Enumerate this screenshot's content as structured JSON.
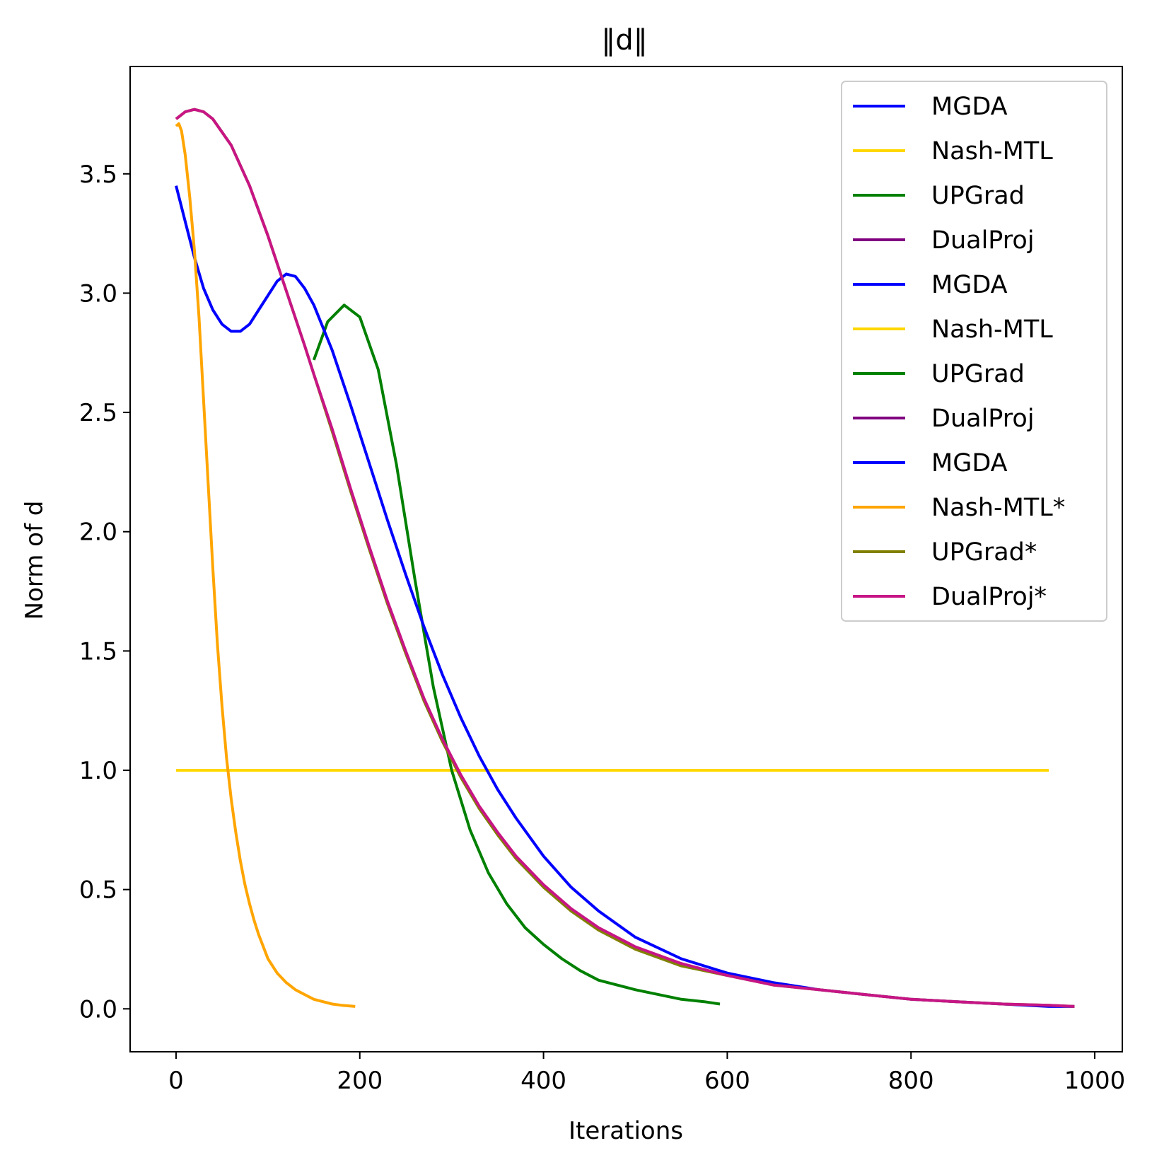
{
  "chart_data": {
    "type": "line",
    "title": "‖d‖",
    "xlabel": "Iterations",
    "ylabel": "Norm of d",
    "xlim": [
      -50,
      1030
    ],
    "ylim": [
      -0.18,
      3.95
    ],
    "xticks": [
      0,
      200,
      400,
      600,
      800,
      1000
    ],
    "yticks": [
      0.0,
      0.5,
      1.0,
      1.5,
      2.0,
      2.5,
      3.0,
      3.5
    ],
    "xtick_labels": [
      "0",
      "200",
      "400",
      "600",
      "800",
      "1000"
    ],
    "ytick_labels": [
      "0.0",
      "0.5",
      "1.0",
      "1.5",
      "2.0",
      "2.5",
      "3.0",
      "3.5"
    ],
    "grid": false,
    "legend_position": "upper right",
    "series": [
      {
        "name": "MGDA",
        "color": "#0000ff",
        "x": [],
        "y": []
      },
      {
        "name": "Nash-MTL",
        "color": "#ffd700",
        "x": [
          0,
          950
        ],
        "y": [
          1.0,
          1.0
        ]
      },
      {
        "name": "UPGrad",
        "color": "#008000",
        "x": [
          150,
          165,
          183,
          200,
          220,
          240,
          260,
          280,
          300,
          320,
          340,
          360,
          380,
          400,
          420,
          440,
          460,
          480,
          500,
          525,
          550,
          575,
          592
        ],
        "y": [
          2.72,
          2.88,
          2.95,
          2.9,
          2.68,
          2.28,
          1.8,
          1.35,
          1.0,
          0.75,
          0.57,
          0.44,
          0.34,
          0.27,
          0.21,
          0.16,
          0.12,
          0.1,
          0.08,
          0.06,
          0.04,
          0.03,
          0.02
        ]
      },
      {
        "name": "DualProj",
        "color": "#800080",
        "x": [],
        "y": []
      },
      {
        "name": "MGDA",
        "color": "#0000ff",
        "x": [
          0,
          10,
          20,
          30,
          40,
          50,
          60,
          70,
          80,
          90,
          100,
          110,
          120,
          130,
          140,
          150,
          170,
          190,
          210,
          230,
          250,
          270,
          290,
          310,
          330,
          350,
          370,
          400,
          430,
          460,
          500,
          550,
          600,
          650,
          700,
          750,
          800,
          850,
          900,
          950,
          978
        ],
        "y": [
          3.45,
          3.3,
          3.15,
          3.02,
          2.93,
          2.87,
          2.84,
          2.84,
          2.87,
          2.93,
          2.99,
          3.05,
          3.08,
          3.07,
          3.02,
          2.95,
          2.76,
          2.53,
          2.29,
          2.05,
          1.82,
          1.6,
          1.4,
          1.22,
          1.06,
          0.92,
          0.8,
          0.64,
          0.51,
          0.41,
          0.3,
          0.21,
          0.15,
          0.11,
          0.08,
          0.06,
          0.04,
          0.03,
          0.02,
          0.01,
          0.01
        ]
      },
      {
        "name": "Nash-MTL",
        "color": "#ffd700",
        "x": [],
        "y": []
      },
      {
        "name": "UPGrad",
        "color": "#008000",
        "x": [],
        "y": []
      },
      {
        "name": "DualProj",
        "color": "#800080",
        "x": [],
        "y": []
      },
      {
        "name": "MGDA",
        "color": "#0000ff",
        "x": [],
        "y": []
      },
      {
        "name": "Nash-MTL*",
        "color": "#ffa500",
        "x": [
          0,
          3,
          6,
          10,
          15,
          20,
          25,
          30,
          35,
          40,
          45,
          50,
          55,
          60,
          65,
          70,
          75,
          80,
          85,
          90,
          95,
          100,
          110,
          120,
          130,
          140,
          150,
          160,
          170,
          180,
          195
        ],
        "y": [
          3.7,
          3.71,
          3.68,
          3.58,
          3.4,
          3.18,
          2.9,
          2.55,
          2.2,
          1.85,
          1.53,
          1.27,
          1.05,
          0.88,
          0.74,
          0.62,
          0.52,
          0.44,
          0.37,
          0.31,
          0.26,
          0.21,
          0.15,
          0.11,
          0.08,
          0.06,
          0.04,
          0.03,
          0.02,
          0.015,
          0.01
        ]
      },
      {
        "name": "UPGrad*",
        "color": "#808000",
        "x": [
          0,
          10,
          20,
          30,
          40,
          60,
          80,
          100,
          120,
          140,
          150,
          170,
          190,
          210,
          230,
          250,
          270,
          290,
          310,
          330,
          350,
          370,
          400,
          430,
          460,
          500,
          550,
          600,
          650,
          700,
          750,
          800,
          850,
          900,
          950,
          978
        ],
        "y": [
          3.73,
          3.76,
          3.77,
          3.76,
          3.73,
          3.62,
          3.45,
          3.24,
          3.01,
          2.78,
          2.66,
          2.42,
          2.17,
          1.93,
          1.7,
          1.49,
          1.29,
          1.12,
          0.97,
          0.84,
          0.73,
          0.63,
          0.51,
          0.41,
          0.33,
          0.25,
          0.18,
          0.14,
          0.1,
          0.08,
          0.06,
          0.04,
          0.03,
          0.02,
          0.015,
          0.01
        ]
      },
      {
        "name": "DualProj*",
        "color": "#c71585",
        "x": [
          0,
          10,
          20,
          30,
          40,
          60,
          80,
          100,
          120,
          140,
          150,
          170,
          190,
          210,
          230,
          250,
          270,
          290,
          310,
          330,
          350,
          370,
          400,
          430,
          460,
          500,
          550,
          600,
          650,
          700,
          750,
          800,
          850,
          900,
          950,
          978
        ],
        "y": [
          3.73,
          3.76,
          3.77,
          3.76,
          3.73,
          3.62,
          3.45,
          3.24,
          3.01,
          2.78,
          2.66,
          2.43,
          2.18,
          1.94,
          1.71,
          1.5,
          1.3,
          1.13,
          0.98,
          0.85,
          0.74,
          0.64,
          0.52,
          0.42,
          0.34,
          0.26,
          0.19,
          0.14,
          0.1,
          0.08,
          0.06,
          0.04,
          0.03,
          0.02,
          0.015,
          0.01
        ]
      }
    ]
  }
}
